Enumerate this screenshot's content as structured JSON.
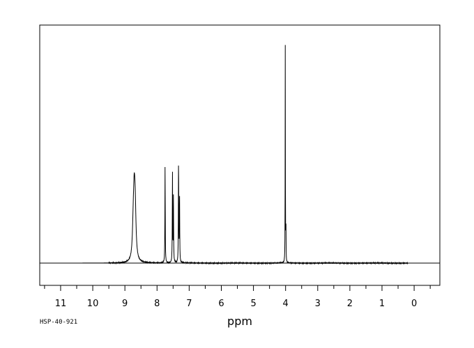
{
  "chart_data": {
    "type": "line",
    "title": "",
    "xlabel": "ppm",
    "ylabel": "",
    "xlim": [
      11.65,
      -0.8
    ],
    "ylim": [
      -0.11,
      1.0
    ],
    "x_reversed": true,
    "xticks": [
      11,
      10,
      9,
      8,
      7,
      6,
      5,
      4,
      3,
      2,
      1,
      0
    ],
    "minor_tick_step": 0.5,
    "grid": false,
    "legend": "none",
    "line_color": "#000000",
    "baseline": 0.0,
    "peaks": [
      {
        "ppm": 8.71,
        "height": 0.255,
        "width": 0.03
      },
      {
        "ppm": 8.68,
        "height": 0.2,
        "width": 0.03
      },
      {
        "ppm": 8.74,
        "height": 0.12,
        "width": 0.03
      },
      {
        "ppm": 7.75,
        "height": 0.45,
        "width": 0.006
      },
      {
        "ppm": 7.52,
        "height": 0.42,
        "width": 0.006
      },
      {
        "ppm": 7.49,
        "height": 0.3,
        "width": 0.006
      },
      {
        "ppm": 7.33,
        "height": 0.49,
        "width": 0.006
      },
      {
        "ppm": 7.3,
        "height": 0.32,
        "width": 0.006
      },
      {
        "ppm": 4.01,
        "height": 1.0,
        "width": 0.004
      },
      {
        "ppm": 3.99,
        "height": 0.205,
        "width": 0.004
      }
    ]
  },
  "footer": {
    "code": "HSP-40-921"
  }
}
